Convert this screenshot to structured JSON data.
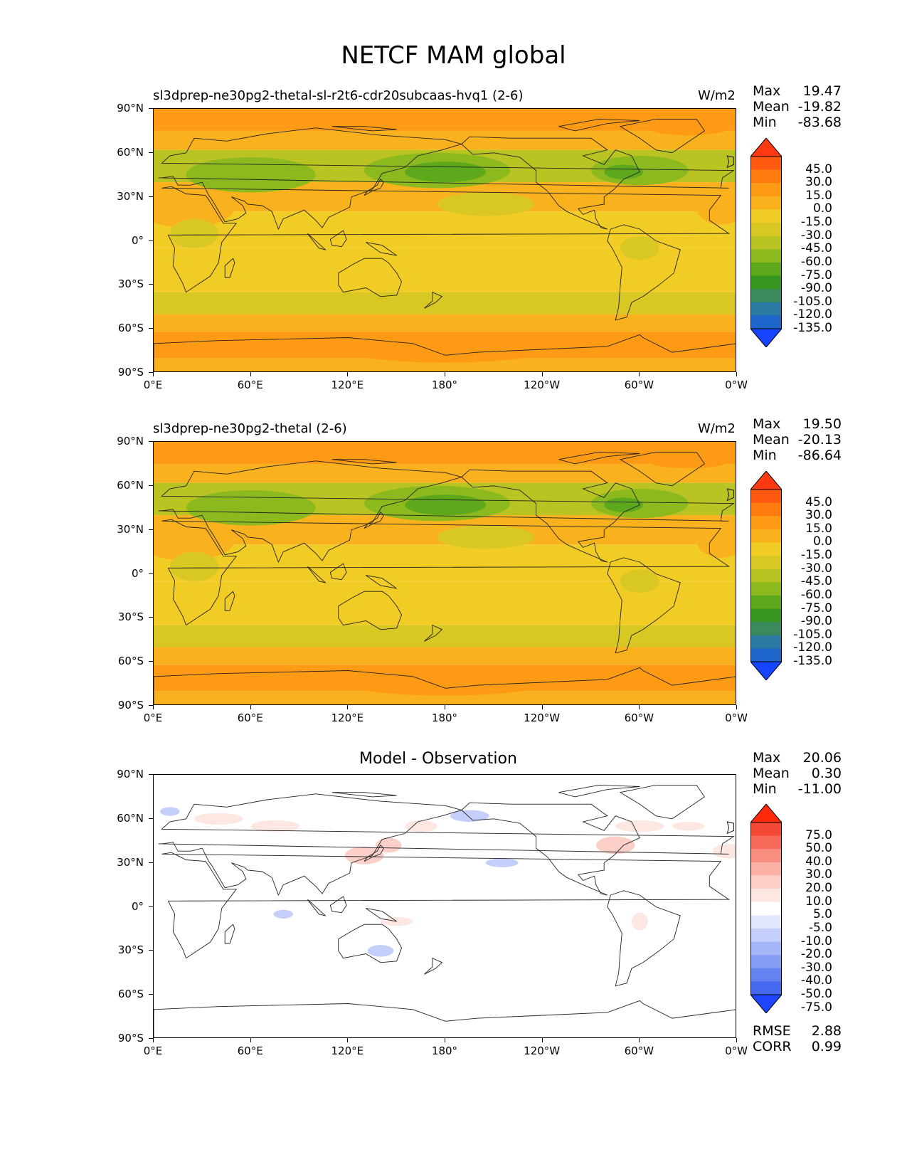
{
  "title": "NETCF MAM global",
  "panels": [
    {
      "title": "sl3dprep-ne30pg2-thetal-sl-r2t6-cdr20subcaas-hvq1 (2-6)",
      "units": "W/m2",
      "stats": [
        {
          "label": "Max",
          "value": "19.47"
        },
        {
          "label": "Mean",
          "value": "-19.82"
        },
        {
          "label": "Min",
          "value": "-83.68"
        }
      ]
    },
    {
      "title": "sl3dprep-ne30pg2-thetal (2-6)",
      "units": "W/m2",
      "stats": [
        {
          "label": "Max",
          "value": "19.50"
        },
        {
          "label": "Mean",
          "value": "-20.13"
        },
        {
          "label": "Min",
          "value": "-86.64"
        }
      ]
    },
    {
      "title": "Model - Observation",
      "units": "",
      "stats": [
        {
          "label": "Max",
          "value": "20.06"
        },
        {
          "label": "Mean",
          "value": "0.30"
        },
        {
          "label": "Min",
          "value": "-11.00"
        }
      ],
      "metrics": [
        {
          "label": "RMSE",
          "value": "2.88"
        },
        {
          "label": "CORR",
          "value": "0.99"
        }
      ]
    }
  ],
  "colorbar_main": {
    "labels": [
      "45.0",
      "30.0",
      "15.0",
      "0.0",
      "-15.0",
      "-30.0",
      "-45.0",
      "-60.0",
      "-75.0",
      "-90.0",
      "-105.0",
      "-120.0",
      "-135.0"
    ],
    "colors": [
      "#ff3a12",
      "#ff5a10",
      "#ff7a0f",
      "#ff9a15",
      "#f9b21e",
      "#f0cc25",
      "#d9c823",
      "#b9c322",
      "#8cb91e",
      "#5da91b",
      "#34961f",
      "#3a8a5e",
      "#2b7aa3",
      "#1f66cc",
      "#1545ff"
    ]
  },
  "colorbar_diff": {
    "labels": [
      "75.0",
      "50.0",
      "40.0",
      "30.0",
      "20.0",
      "10.0",
      "5.0",
      "-5.0",
      "-10.0",
      "-20.0",
      "-30.0",
      "-40.0",
      "-50.0",
      "-75.0"
    ],
    "colors": [
      "#ff2a0a",
      "#f44a35",
      "#f76a5a",
      "#f98d80",
      "#fbb0a6",
      "#fcd0c9",
      "#fde7e3",
      "#ffffff",
      "#e2e7fd",
      "#c4cffb",
      "#a5b6f8",
      "#869df5",
      "#6683f2",
      "#4669ef",
      "#1f45ff"
    ]
  },
  "x_ticks": [
    "0°E",
    "60°E",
    "120°E",
    "180°",
    "120°W",
    "60°W",
    "0°W"
  ],
  "y_ticks": [
    "90°N",
    "60°N",
    "30°N",
    "0°",
    "30°S",
    "60°S",
    "90°S"
  ]
}
